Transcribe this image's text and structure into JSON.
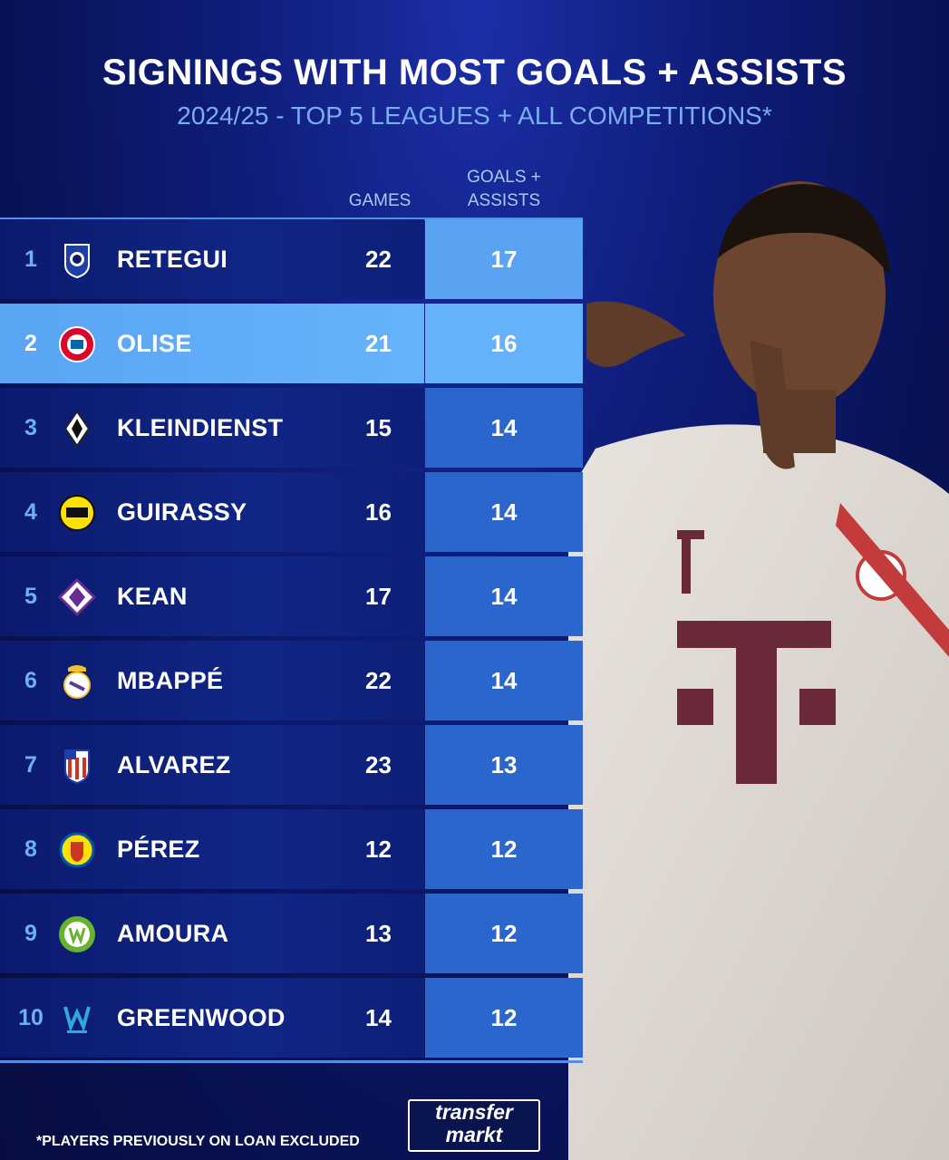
{
  "title": "SIGNINGS WITH MOST GOALS + ASSISTS",
  "subtitle": "2024/25 - TOP 5 LEAGUES + ALL COMPETITIONS*",
  "columns": {
    "games": "GAMES",
    "ga_line1": "GOALS +",
    "ga_line2": "ASSISTS"
  },
  "rows": [
    {
      "rank": "1",
      "name": "RETEGUI",
      "games": "22",
      "ga": "17",
      "crest": "atalanta-crest-icon"
    },
    {
      "rank": "2",
      "name": "OLISE",
      "games": "21",
      "ga": "16",
      "crest": "bayern-crest-icon"
    },
    {
      "rank": "3",
      "name": "KLEINDIENST",
      "games": "15",
      "ga": "14",
      "crest": "gladbach-crest-icon"
    },
    {
      "rank": "4",
      "name": "GUIRASSY",
      "games": "16",
      "ga": "14",
      "crest": "dortmund-crest-icon"
    },
    {
      "rank": "5",
      "name": "KEAN",
      "games": "17",
      "ga": "14",
      "crest": "fiorentina-crest-icon"
    },
    {
      "rank": "6",
      "name": "MBAPPÉ",
      "games": "22",
      "ga": "14",
      "crest": "real-madrid-crest-icon"
    },
    {
      "rank": "7",
      "name": "ALVAREZ",
      "games": "23",
      "ga": "13",
      "crest": "atletico-crest-icon"
    },
    {
      "rank": "8",
      "name": "PÉREZ",
      "games": "12",
      "ga": "12",
      "crest": "villarreal-crest-icon"
    },
    {
      "rank": "9",
      "name": "AMOURA",
      "games": "13",
      "ga": "12",
      "crest": "wolfsburg-crest-icon"
    },
    {
      "rank": "10",
      "name": "GREENWOOD",
      "games": "14",
      "ga": "12",
      "crest": "marseille-crest-icon"
    }
  ],
  "footnote": "*PLAYERS PREVIOUSLY ON LOAN EXCLUDED",
  "logo": {
    "line1": "transfer",
    "line2": "markt"
  },
  "colors": {
    "highlight": "#66b2fa",
    "accent": "#5aa2f2",
    "ga_column": "#2b66cc"
  }
}
